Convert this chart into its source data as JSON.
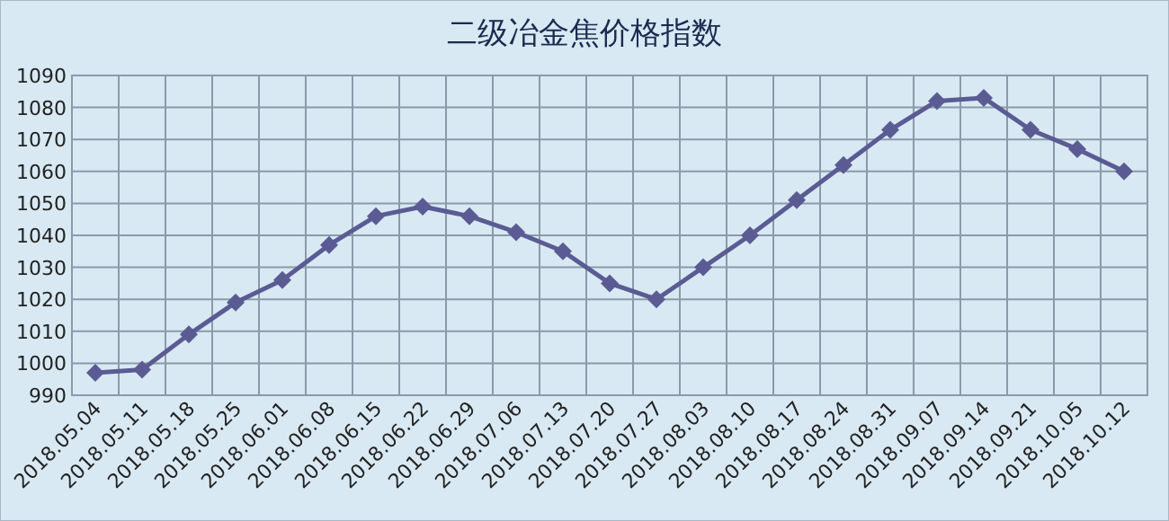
{
  "chart_data": {
    "type": "line",
    "title": "二级冶金焦价格指数",
    "categories": [
      "2018.05.04",
      "2018.05.11",
      "2018.05.18",
      "2018.05.25",
      "2018.06.01",
      "2018.06.08",
      "2018.06.15",
      "2018.06.22",
      "2018.06.29",
      "2018.07.06",
      "2018.07.13",
      "2018.07.20",
      "2018.07.27",
      "2018.08.03",
      "2018.08.10",
      "2018.08.17",
      "2018.08.24",
      "2018.08.31",
      "2018.09.07",
      "2018.09.14",
      "2018.09.21",
      "2018.10.05",
      "2018.10.12"
    ],
    "series": [
      {
        "color": "#5b5b94",
        "values": [
          997,
          998,
          1009,
          1019,
          1026,
          1037,
          1046,
          1049,
          1046,
          1041,
          1035,
          1025,
          1020,
          1030,
          1040,
          1051,
          1062,
          1073,
          1082,
          1083,
          1073,
          1067,
          1060
        ]
      }
    ],
    "ylim": [
      990,
      1090
    ],
    "yticks": [
      990,
      1000,
      1010,
      1020,
      1030,
      1040,
      1050,
      1060,
      1070,
      1080,
      1090
    ],
    "grid": true,
    "marker": "diamond"
  }
}
